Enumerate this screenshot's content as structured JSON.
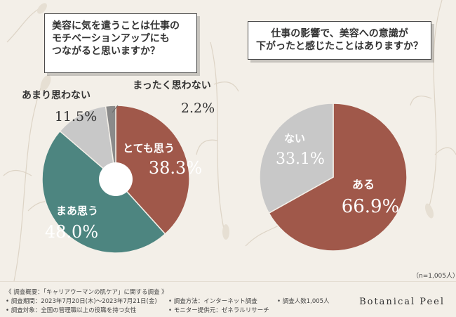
{
  "chart_data": [
    {
      "type": "pie",
      "question": [
        "美容に気を遣うことは仕事の",
        "モチベーションアップにも",
        "つながると思いますか？"
      ],
      "slices": [
        {
          "label": "とても思う",
          "value": 38.3,
          "display": "38.3%",
          "color": "#a0584a"
        },
        {
          "label": "まあ思う",
          "value": 48.0,
          "display": "48.0%",
          "color": "#4d8580"
        },
        {
          "label": "あまり思わない",
          "value": 11.5,
          "display": "11.5%",
          "color": "#c8c8c8"
        },
        {
          "label": "まったく思わない",
          "value": 2.2,
          "display": "2.2%",
          "color": "#8a8a8a"
        }
      ]
    },
    {
      "type": "pie",
      "question": [
        "仕事の影響で、美容への意識が",
        "下がったと感じたことはありますか？"
      ],
      "slices": [
        {
          "label": "ある",
          "value": 66.9,
          "display": "66.9%",
          "color": "#a0584a"
        },
        {
          "label": "ない",
          "value": 33.1,
          "display": "33.1%",
          "color": "#c8c8c8"
        }
      ]
    }
  ],
  "sample_note": "（n=1,005人）",
  "footer": {
    "overview": "《 調査概要：「キャリアウーマンの肌ケア」に関する調査 》",
    "period": "• 調査期間：2023年7月20日(木)〜2023年7月21日(金)",
    "target": "• 調査対象：全国の管理職以上の役職を持つ女性",
    "method": "• 調査方法：インターネット調査",
    "provider": "• モニター提供元：ゼネラルリサーチ",
    "count": "• 調査人数1,005人",
    "brand": "Botanical Peel"
  }
}
